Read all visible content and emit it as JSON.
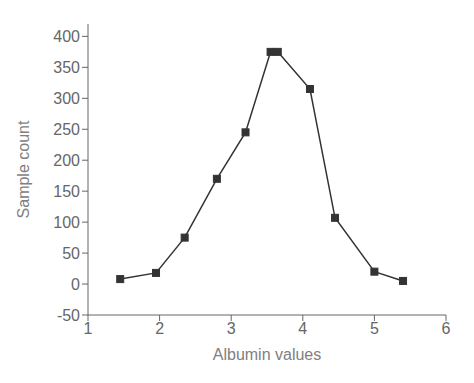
{
  "chart_data": {
    "type": "line",
    "xlabel": "Albumin values",
    "ylabel": "Sample count",
    "x": [
      1.45,
      1.95,
      2.35,
      2.8,
      3.2,
      3.55,
      3.65,
      4.1,
      4.45,
      5.0,
      5.4
    ],
    "values": [
      8,
      18,
      75,
      170,
      245,
      375,
      375,
      315,
      107,
      20,
      5
    ],
    "xlim": [
      1,
      6
    ],
    "ylim": [
      -50,
      420
    ],
    "xticks": [
      1,
      2,
      3,
      4,
      5,
      6
    ],
    "yticks": [
      -50,
      0,
      50,
      100,
      150,
      200,
      250,
      300,
      350,
      400
    ],
    "color": "#333333",
    "marker": "square",
    "line_style": "solid",
    "grid": false
  }
}
